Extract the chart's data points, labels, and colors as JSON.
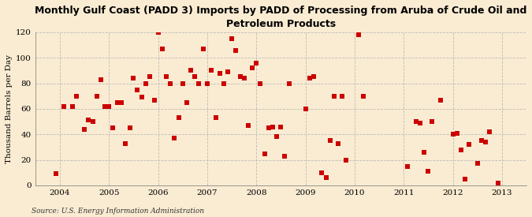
{
  "title": "Monthly Gulf Coast (PADD 3) Imports by PADD of Processing from Aruba of Crude Oil and\nPetroleum Products",
  "ylabel": "Thousand Barrels per Day",
  "source": "Source: U.S. Energy Information Administration",
  "background_color": "#faecd2",
  "marker_color": "#cc0000",
  "ylim": [
    0,
    120
  ],
  "yticks": [
    0,
    20,
    40,
    60,
    80,
    100,
    120
  ],
  "xlim": [
    2003.5,
    2013.5
  ],
  "xticks": [
    2004,
    2005,
    2006,
    2007,
    2008,
    2009,
    2010,
    2011,
    2012,
    2013
  ],
  "data_x": [
    2003.92,
    2004.08,
    2004.25,
    2004.33,
    2004.5,
    2004.58,
    2004.67,
    2004.75,
    2004.83,
    2004.92,
    2005.0,
    2005.08,
    2005.17,
    2005.25,
    2005.33,
    2005.42,
    2005.5,
    2005.58,
    2005.67,
    2005.75,
    2005.83,
    2005.92,
    2006.0,
    2006.08,
    2006.17,
    2006.25,
    2006.33,
    2006.42,
    2006.5,
    2006.58,
    2006.67,
    2006.75,
    2006.83,
    2006.92,
    2007.0,
    2007.08,
    2007.17,
    2007.25,
    2007.33,
    2007.42,
    2007.5,
    2007.58,
    2007.67,
    2007.75,
    2007.83,
    2007.92,
    2008.0,
    2008.08,
    2008.17,
    2008.25,
    2008.33,
    2008.42,
    2008.5,
    2008.58,
    2008.67,
    2009.0,
    2009.08,
    2009.17,
    2009.33,
    2009.42,
    2009.5,
    2009.58,
    2009.67,
    2009.75,
    2009.83,
    2010.08,
    2010.17,
    2011.08,
    2011.25,
    2011.33,
    2011.42,
    2011.5,
    2011.58,
    2011.75,
    2012.0,
    2012.08,
    2012.17,
    2012.25,
    2012.33,
    2012.5,
    2012.58,
    2012.67,
    2012.75,
    2012.92
  ],
  "data_y": [
    9,
    62,
    62,
    70,
    44,
    51,
    50,
    70,
    83,
    62,
    62,
    45,
    65,
    65,
    33,
    45,
    84,
    75,
    69,
    80,
    85,
    67,
    120,
    107,
    85,
    80,
    37,
    53,
    80,
    65,
    90,
    85,
    80,
    107,
    80,
    90,
    53,
    88,
    80,
    89,
    115,
    106,
    85,
    84,
    47,
    92,
    96,
    80,
    25,
    45,
    46,
    38,
    46,
    23,
    80,
    60,
    84,
    85,
    10,
    6,
    35,
    70,
    33,
    70,
    20,
    118,
    70,
    15,
    50,
    49,
    26,
    11,
    50,
    67,
    40,
    41,
    28,
    5,
    32,
    17,
    35,
    34,
    42,
    2
  ]
}
